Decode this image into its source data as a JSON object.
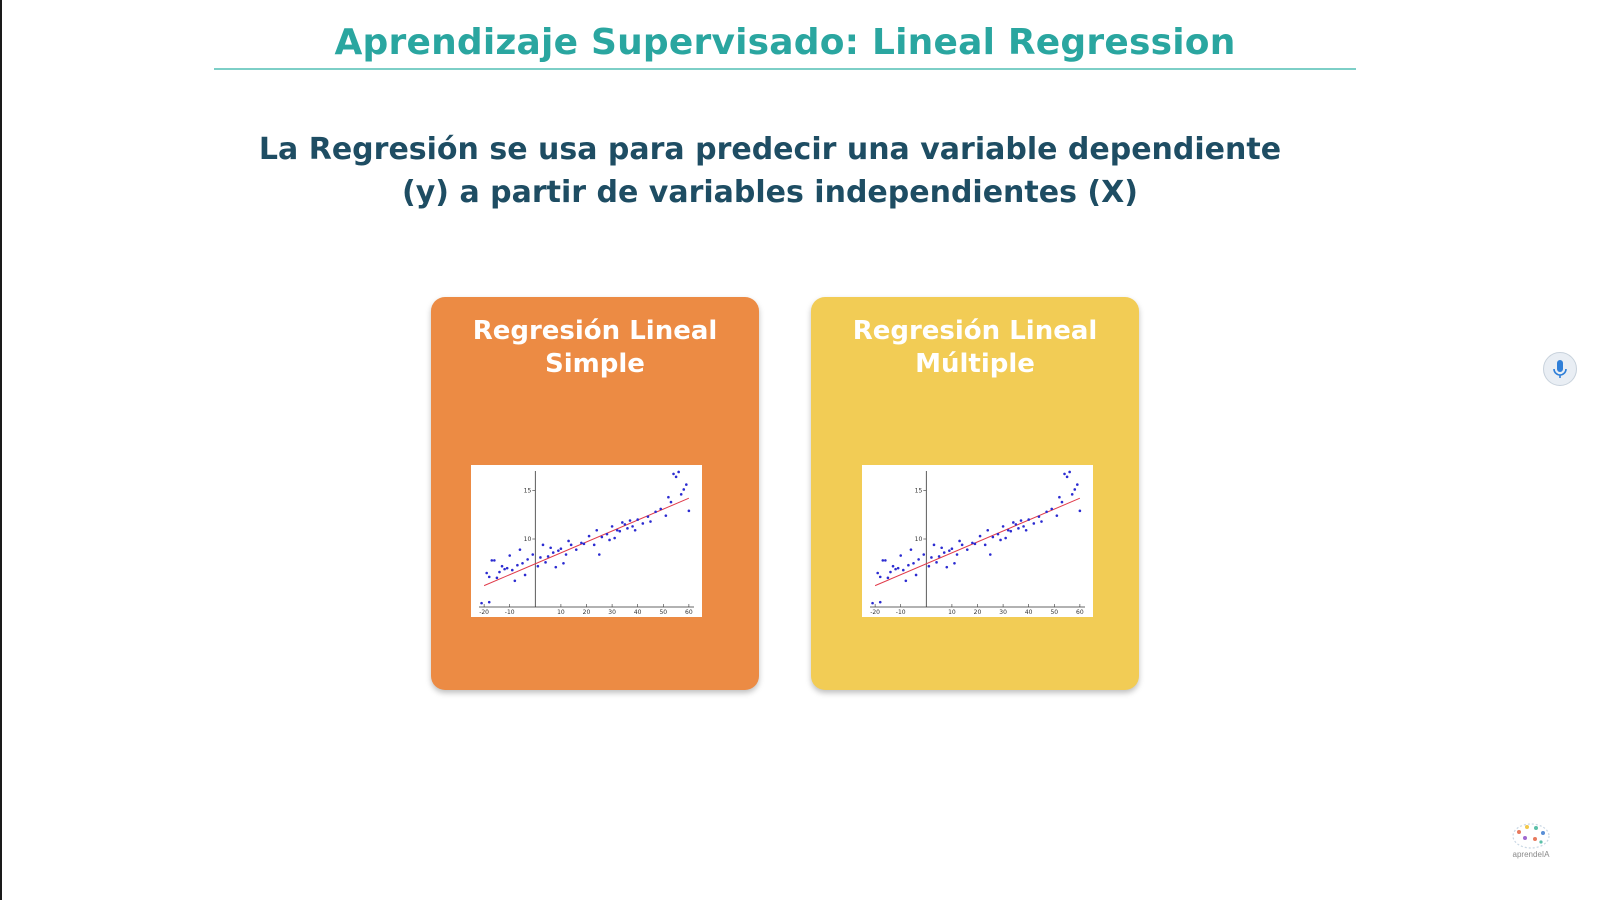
{
  "slide": {
    "title": "Aprendizaje Supervisado: Lineal Regression",
    "subtitle_line1": "La Regresión se usa para predecir una variable dependiente",
    "subtitle_line2": "(y) a partir de variables independientes (X)"
  },
  "cards": [
    {
      "line1": "Regresión Lineal",
      "line2": "Simple",
      "color": "#ec8b44"
    },
    {
      "line1": "Regresión Lineal",
      "line2": "Múltiple",
      "color": "#f2cc55"
    }
  ],
  "chart_data": {
    "type": "scatter",
    "title": "",
    "xlabel": "",
    "ylabel": "",
    "xlim": [
      -22,
      62
    ],
    "ylim": [
      3,
      17
    ],
    "x_ticks": [
      -20,
      -10,
      10,
      20,
      30,
      40,
      50,
      60
    ],
    "y_ticks": [
      10,
      15
    ],
    "point_color": "#2b2bd1",
    "line_color": "#e03a4a",
    "regression_line": [
      [
        -20,
        5.2
      ],
      [
        60,
        14.2
      ]
    ],
    "points": [
      [
        -19,
        6.5
      ],
      [
        -18,
        6.1
      ],
      [
        -17,
        7.8
      ],
      [
        -16,
        7.8
      ],
      [
        -15,
        6.0
      ],
      [
        -14,
        6.6
      ],
      [
        -13,
        7.2
      ],
      [
        -12,
        6.9
      ],
      [
        -11,
        7.0
      ],
      [
        -10,
        8.3
      ],
      [
        -9,
        6.8
      ],
      [
        -8,
        5.7
      ],
      [
        -7,
        7.3
      ],
      [
        -6,
        8.9
      ],
      [
        -5,
        7.5
      ],
      [
        -4,
        6.3
      ],
      [
        -3,
        7.9
      ],
      [
        -1,
        8.4
      ],
      [
        1,
        7.2
      ],
      [
        2,
        8.1
      ],
      [
        3,
        9.4
      ],
      [
        4,
        7.6
      ],
      [
        5,
        8.2
      ],
      [
        6,
        9.1
      ],
      [
        7,
        8.6
      ],
      [
        8,
        7.1
      ],
      [
        9,
        8.8
      ],
      [
        10,
        9.0
      ],
      [
        11,
        7.5
      ],
      [
        12,
        8.4
      ],
      [
        13,
        9.8
      ],
      [
        14,
        9.4
      ],
      [
        16,
        8.9
      ],
      [
        18,
        9.6
      ],
      [
        19,
        9.5
      ],
      [
        21,
        10.3
      ],
      [
        23,
        9.4
      ],
      [
        24,
        10.9
      ],
      [
        25,
        8.4
      ],
      [
        26,
        10.2
      ],
      [
        28,
        10.5
      ],
      [
        29,
        9.9
      ],
      [
        30,
        11.3
      ],
      [
        31,
        10.1
      ],
      [
        32,
        10.9
      ],
      [
        33,
        10.8
      ],
      [
        34,
        11.7
      ],
      [
        35,
        11.5
      ],
      [
        36,
        11.1
      ],
      [
        37,
        11.9
      ],
      [
        38,
        11.3
      ],
      [
        39,
        10.9
      ],
      [
        40,
        12.0
      ],
      [
        42,
        11.6
      ],
      [
        44,
        12.3
      ],
      [
        45,
        11.8
      ],
      [
        47,
        12.8
      ],
      [
        49,
        13.1
      ],
      [
        51,
        12.4
      ],
      [
        52,
        14.3
      ],
      [
        53,
        13.8
      ],
      [
        54,
        16.7
      ],
      [
        55,
        16.4
      ],
      [
        56,
        16.9
      ],
      [
        57,
        14.6
      ],
      [
        58,
        15.1
      ],
      [
        59,
        15.6
      ],
      [
        60,
        12.9
      ],
      [
        -21,
        3.4
      ],
      [
        -18,
        3.5
      ]
    ]
  }
}
